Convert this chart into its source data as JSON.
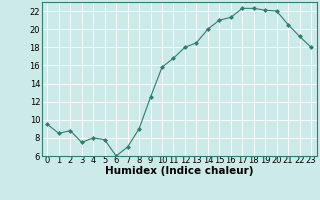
{
  "x": [
    0,
    1,
    2,
    3,
    4,
    5,
    6,
    7,
    8,
    9,
    10,
    11,
    12,
    13,
    14,
    15,
    16,
    17,
    18,
    19,
    20,
    21,
    22,
    23
  ],
  "y": [
    9.5,
    8.5,
    8.8,
    7.5,
    8.0,
    7.8,
    6.0,
    7.0,
    9.0,
    12.5,
    15.8,
    16.8,
    18.0,
    18.5,
    20.0,
    21.0,
    21.3,
    22.3,
    22.3,
    22.1,
    22.0,
    20.5,
    19.2,
    18.0
  ],
  "line_color": "#2e7d6e",
  "marker": "D",
  "marker_size": 2.0,
  "bg_color": "#cceae7",
  "grid_color": "#ffffff",
  "grid_red_color": "#f0b0b0",
  "xlabel": "Humidex (Indice chaleur)",
  "ylim": [
    6,
    23
  ],
  "xlim": [
    -0.5,
    23.5
  ],
  "yticks": [
    6,
    8,
    10,
    12,
    14,
    16,
    18,
    20,
    22
  ],
  "xticks": [
    0,
    1,
    2,
    3,
    4,
    5,
    6,
    7,
    8,
    9,
    10,
    11,
    12,
    13,
    14,
    15,
    16,
    17,
    18,
    19,
    20,
    21,
    22,
    23
  ],
  "tick_fontsize": 6.0,
  "xlabel_fontsize": 7.5,
  "linewidth": 0.8
}
